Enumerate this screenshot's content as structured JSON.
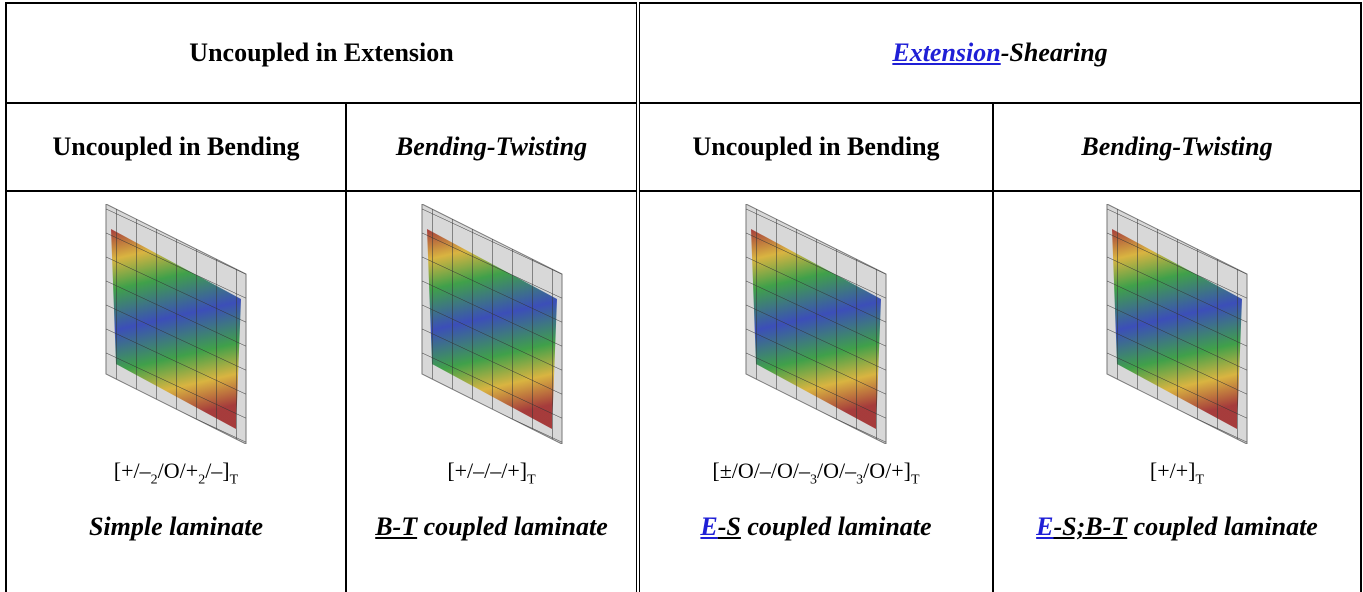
{
  "header": {
    "left": "Uncoupled in Extension",
    "right": {
      "link": "Extension",
      "rest": "-Shearing"
    }
  },
  "subheaders": [
    "Uncoupled in Bending",
    "Bending-Twisting",
    "Uncoupled in Bending",
    "Bending-Twisting"
  ],
  "cells": [
    {
      "sequence": [
        [
          "[+/–",
          "2"
        ],
        [
          "/O/+",
          "2"
        ],
        [
          "/–]",
          "T"
        ]
      ],
      "name": {
        "text": "Simple laminate"
      }
    },
    {
      "sequence": [
        [
          "[+/–/–/+]",
          "T"
        ]
      ],
      "name": {
        "abbr": "B-T",
        "rest": " coupled laminate"
      }
    },
    {
      "sequence": [
        [
          "[±/O/–/O/–",
          "3"
        ],
        [
          "/O/–",
          "3"
        ],
        [
          "/O/+]",
          "T"
        ]
      ],
      "name": {
        "link": "E",
        "abbr": "-S",
        "rest": " coupled laminate"
      }
    },
    {
      "sequence": [
        [
          "[+/+]",
          "T"
        ]
      ],
      "name": {
        "link": "E",
        "abbr": "-S;B-T",
        "rest": " coupled laminate"
      }
    }
  ]
}
